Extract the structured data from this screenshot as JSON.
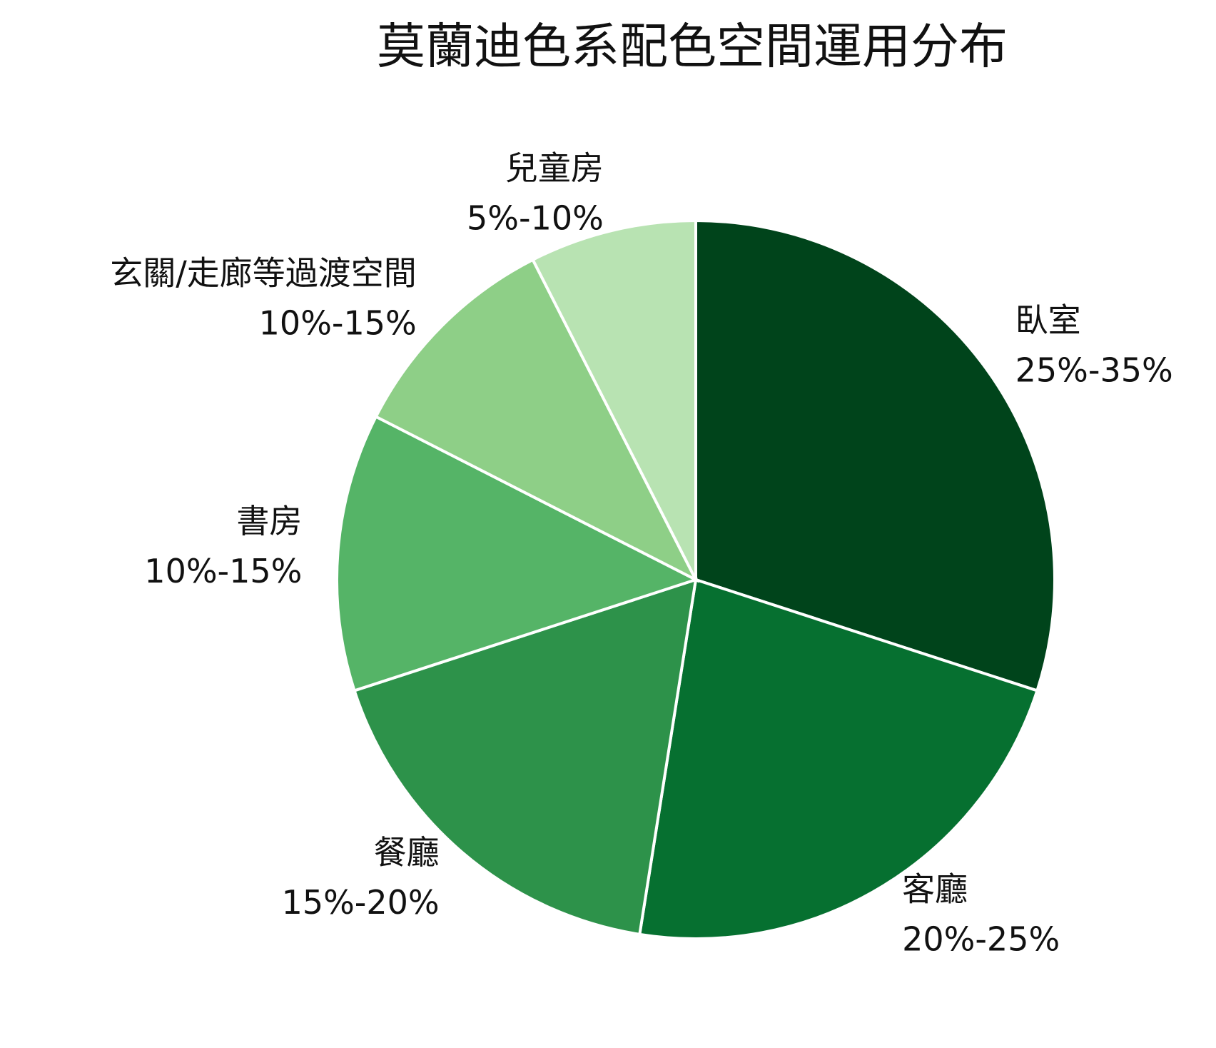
{
  "chart_data": {
    "type": "pie",
    "title": "莫蘭迪色系配色空間運用分布",
    "categories": [
      "臥室",
      "客廳",
      "餐廳",
      "書房",
      "玄關/走廊等過渡空間",
      "兒童房"
    ],
    "values": [
      30,
      22.5,
      17.5,
      12.5,
      10,
      7.5
    ],
    "value_labels": [
      "25%-35%",
      "20%-25%",
      "15%-20%",
      "10%-15%",
      "10%-15%",
      "5%-10%"
    ],
    "colors": [
      "#00441b",
      "#067030",
      "#2d924a",
      "#55b467",
      "#8ecf87",
      "#b8e3b2"
    ]
  }
}
